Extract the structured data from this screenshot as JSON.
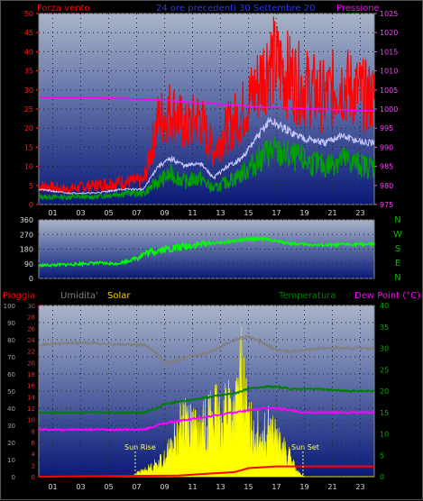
{
  "header": {
    "wind_speed_label": "Forza vento",
    "timestamp": "24 ore precedenti 30 Settembre 20",
    "pressure_label": "Pressione"
  },
  "labels": {
    "rain": "Pioggia",
    "humidity": "Umidita'",
    "solar": "Solar",
    "temperature": "Temperatura",
    "dew_point": "Dew Point (°C)",
    "sun_rise": "Sun Rise",
    "sun_set": "Sun Set",
    "compass": [
      "N",
      "W",
      "S",
      "E",
      "N"
    ]
  },
  "colors": {
    "wind": "#ff0000",
    "gust_avg": "#c8c8ff",
    "wind_green": "#00a000",
    "pressure": "#ff00ff",
    "direction": "#00ff00",
    "humidity": "#808080",
    "temperature": "#008000",
    "dew_point": "#ff00ff",
    "solar": "#ffff00",
    "rain": "#ff0000"
  },
  "chart_data": [
    {
      "type": "line",
      "x_ticks": [
        "01",
        "03",
        "05",
        "07",
        "09",
        "11",
        "13",
        "15",
        "17",
        "19",
        "21",
        "23"
      ],
      "y_left_ticks": [
        "0",
        "5",
        "10",
        "15",
        "20",
        "25",
        "30",
        "35",
        "40",
        "45",
        "50"
      ],
      "y_right_ticks": [
        "975",
        "980",
        "985",
        "990",
        "995",
        "1000",
        "1005",
        "1010",
        "1015",
        "1020",
        "1025"
      ],
      "ylim_left": [
        0,
        50
      ],
      "ylim_right": [
        975,
        1025
      ],
      "xlim": [
        0,
        24
      ],
      "grid": true,
      "series": [
        {
          "name": "Forza vento",
          "x": [
            0,
            2,
            4,
            6,
            7.5,
            8.5,
            9.5,
            10.5,
            11.5,
            12.5,
            13.5,
            14.5,
            15.5,
            16.5,
            17.5,
            18.5,
            19.5,
            20.5,
            21.5,
            22.5,
            23.5
          ],
          "values": [
            5,
            4,
            5,
            6,
            6,
            22,
            25,
            20,
            23,
            14,
            20,
            24,
            30,
            38,
            35,
            32,
            30,
            28,
            32,
            30,
            28
          ]
        },
        {
          "x": [
            0,
            2,
            4,
            6,
            7.5,
            8.5,
            9.5,
            10.5,
            11.5,
            12.5,
            13.5,
            14.5,
            15.5,
            16.5,
            17.5,
            18.5,
            19.5,
            20.5,
            21.5,
            22.5,
            23.5
          ],
          "values": [
            4,
            3,
            3,
            4,
            4,
            10,
            12,
            10,
            11,
            7,
            10,
            12,
            17,
            22,
            20,
            18,
            17,
            16,
            18,
            17,
            16
          ]
        },
        {
          "x": [
            0,
            2,
            4,
            6,
            7.5,
            8.5,
            9.5,
            10.5,
            11.5,
            12.5,
            13.5,
            14.5,
            15.5,
            16.5,
            17.5,
            18.5,
            19.5,
            20.5,
            21.5,
            22.5,
            23.5
          ],
          "values": [
            2,
            2,
            2,
            3,
            3,
            6,
            8,
            6,
            7,
            4,
            6,
            8,
            11,
            14,
            13,
            12,
            11,
            10,
            12,
            11,
            10
          ]
        },
        {
          "name": "Pressione",
          "x": [
            0,
            4,
            8,
            12,
            16,
            20,
            24
          ],
          "values": [
            1003,
            1003,
            1002.5,
            1001.5,
            1000.5,
            1000,
            999.5
          ]
        }
      ]
    },
    {
      "type": "line",
      "y_ticks": [
        "0",
        "90",
        "180",
        "270",
        "360"
      ],
      "ylim": [
        0,
        360
      ],
      "xlim": [
        0,
        24
      ],
      "series": [
        {
          "x": [
            0,
            2,
            4,
            5.5,
            6.5,
            7,
            7.5,
            8,
            8.5,
            9,
            10,
            11,
            12,
            13,
            14,
            15,
            16,
            17,
            18,
            19,
            20,
            21,
            22,
            23,
            24
          ],
          "values": [
            80,
            85,
            95,
            90,
            110,
            130,
            150,
            160,
            175,
            180,
            190,
            205,
            215,
            220,
            230,
            240,
            245,
            230,
            215,
            210,
            205,
            205,
            210,
            210,
            210
          ]
        }
      ]
    },
    {
      "type": "line",
      "x_ticks": [
        "01",
        "03",
        "05",
        "07",
        "09",
        "11",
        "13",
        "15",
        "17",
        "19",
        "21",
        "23"
      ],
      "y_left_ticks": [
        "0",
        "10",
        "20",
        "30",
        "40",
        "50",
        "60",
        "70",
        "80",
        "90",
        "100"
      ],
      "y_rain_ticks": [
        "0",
        "2",
        "4",
        "6",
        "8",
        "10",
        "12",
        "14",
        "16",
        "18",
        "20",
        "22",
        "24",
        "26",
        "28",
        "30"
      ],
      "y_right_ticks": [
        "0",
        "5",
        "10",
        "15",
        "20",
        "25",
        "30",
        "35",
        "40"
      ],
      "xlim": [
        0,
        24
      ],
      "grid": true,
      "series": [
        {
          "name": "Umidita'",
          "x": [
            0,
            2,
            4,
            6,
            7.5,
            8.5,
            9,
            10,
            11,
            12,
            13,
            14,
            15,
            16,
            17,
            18,
            19,
            20,
            22,
            24
          ],
          "values": [
            77,
            78,
            78,
            77,
            77,
            72,
            66,
            68,
            71,
            72,
            76,
            80,
            82,
            78,
            74,
            73,
            74,
            75,
            75,
            75
          ]
        },
        {
          "name": "Temperatura",
          "x": [
            0,
            2,
            4,
            6,
            7.5,
            8.5,
            9,
            10,
            11,
            12,
            13,
            14,
            15,
            16,
            17,
            18,
            19,
            20,
            22,
            24
          ],
          "values": [
            15,
            15,
            15,
            15,
            15,
            16,
            17,
            17.5,
            18,
            18.5,
            19,
            19.5,
            20.5,
            21,
            21,
            20.5,
            20.5,
            20.5,
            20,
            20
          ]
        },
        {
          "name": "Dew Point",
          "x": [
            0,
            2,
            4,
            6,
            7.5,
            8.5,
            9,
            10,
            11,
            12,
            13,
            14,
            15,
            16,
            17,
            18,
            19,
            20,
            22,
            24
          ],
          "values": [
            11,
            11,
            11,
            11,
            11,
            12,
            12.5,
            13,
            13.5,
            14,
            14.5,
            15,
            15.5,
            16,
            16,
            15.5,
            15,
            15,
            15,
            15
          ]
        },
        {
          "name": "Solar",
          "x": [
            0,
            6.5,
            7.2,
            8,
            8.5,
            9,
            9.5,
            10,
            10.5,
            11,
            11.5,
            12,
            12.5,
            13,
            13.5,
            14,
            14.5,
            15,
            15.5,
            16,
            16.5,
            17,
            17.5,
            18,
            18.5,
            19,
            24
          ],
          "values": [
            0,
            0,
            1,
            2,
            3,
            4,
            7,
            10,
            14,
            11,
            9,
            13,
            15,
            12,
            17,
            13,
            22,
            12,
            10,
            9,
            11,
            8,
            6,
            4,
            1,
            0,
            0
          ]
        },
        {
          "name": "Pioggia",
          "x": [
            0,
            10,
            12,
            14,
            15,
            17,
            19,
            24
          ],
          "values": [
            0,
            0.2,
            0.5,
            0.8,
            1.5,
            1.8,
            1.8,
            1.8
          ]
        }
      ]
    }
  ]
}
